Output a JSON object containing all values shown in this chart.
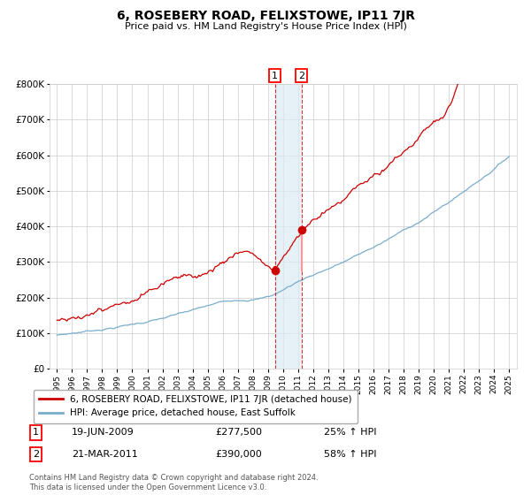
{
  "title": "6, ROSEBERY ROAD, FELIXSTOWE, IP11 7JR",
  "subtitle": "Price paid vs. HM Land Registry's House Price Index (HPI)",
  "red_label": "6, ROSEBERY ROAD, FELIXSTOWE, IP11 7JR (detached house)",
  "blue_label": "HPI: Average price, detached house, East Suffolk",
  "sale1_date": "19-JUN-2009",
  "sale1_price": 277500,
  "sale1_pct": "25%",
  "sale2_date": "21-MAR-2011",
  "sale2_price": 390000,
  "sale2_pct": "58%",
  "footer": "Contains HM Land Registry data © Crown copyright and database right 2024.\nThis data is licensed under the Open Government Licence v3.0.",
  "year_start": 1995,
  "year_end": 2025,
  "ylim_min": 0,
  "ylim_max": 800000,
  "red_color": "#cc0000",
  "blue_color": "#7aadcc",
  "bg_color": "#ffffff",
  "grid_color": "#cccccc",
  "sale1_x": 2009.47,
  "sale2_x": 2011.22,
  "vline1_color": "#cc0000",
  "vline2_color": "#cc0000",
  "shade_color": "#daeaf5",
  "connector_color": "#ff9999"
}
